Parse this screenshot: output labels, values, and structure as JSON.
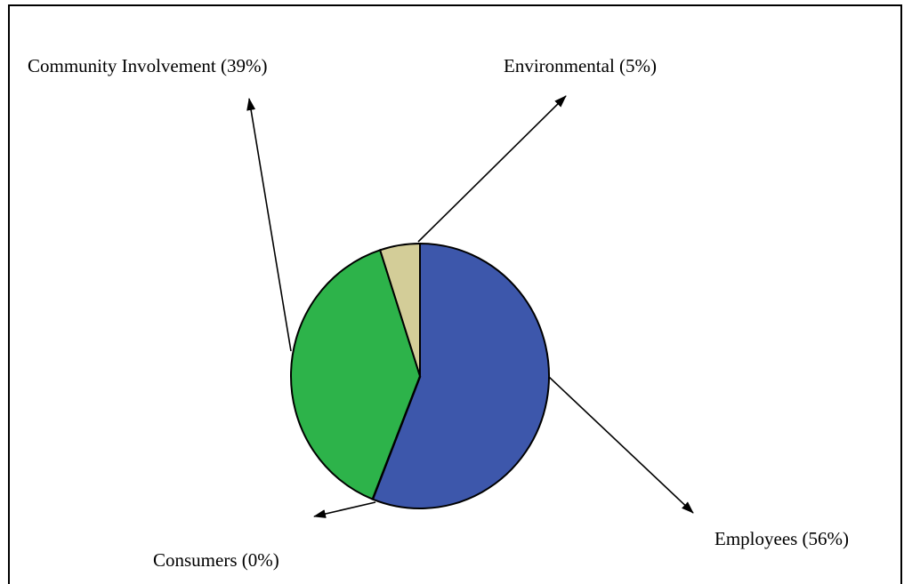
{
  "chart_data": {
    "type": "pie",
    "title": "",
    "slices": [
      {
        "name": "Employees",
        "value": 56,
        "label": "Employees (56%)",
        "color": "#3d57ab"
      },
      {
        "name": "Consumers",
        "value": 0,
        "label": "Consumers (0%)",
        "color": "#2db34a"
      },
      {
        "name": "Community Involvement",
        "value": 39,
        "label": "Community Involvement (39%)",
        "color": "#2db34a"
      },
      {
        "name": "Environmental",
        "value": 5,
        "label": "Environmental (5%)",
        "color": "#d3cd98"
      }
    ],
    "start_angle": "12 o'clock",
    "direction": "clockwise",
    "legend": "none",
    "labels": "callout arrows"
  }
}
